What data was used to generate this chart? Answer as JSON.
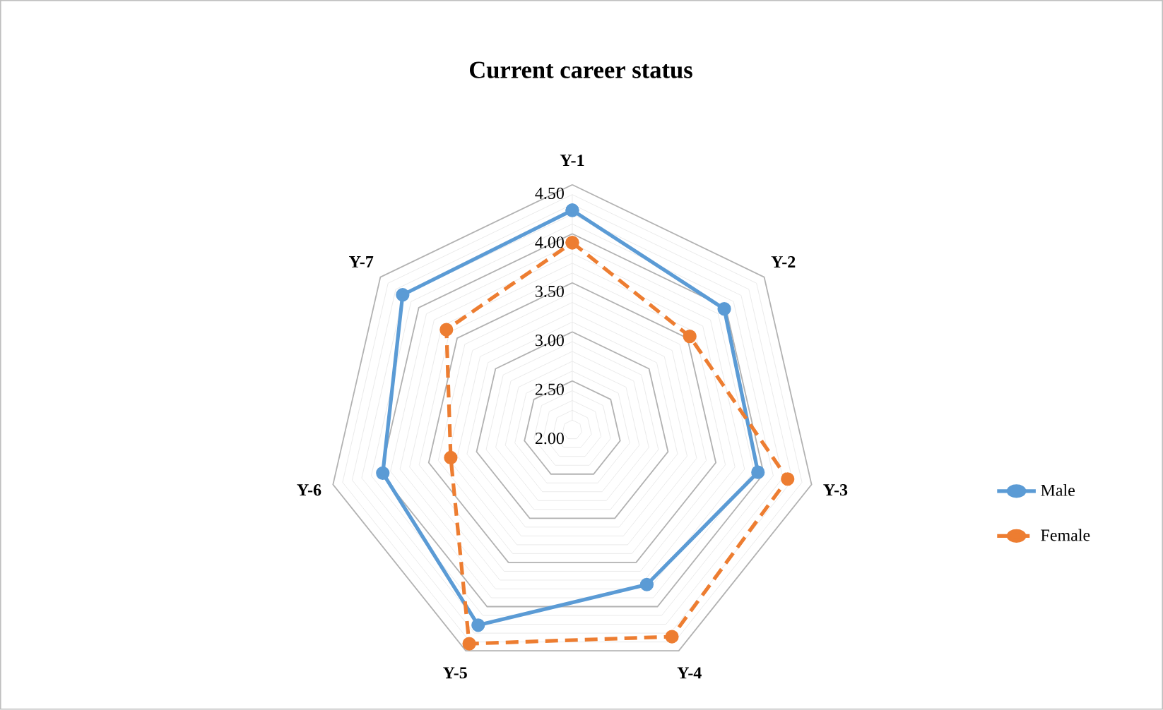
{
  "chart_data": {
    "type": "radar",
    "title": "Current career status",
    "categories": [
      "Y-1",
      "Y-2",
      "Y-3",
      "Y-4",
      "Y-5",
      "Y-6",
      "Y-7"
    ],
    "ylim": [
      2.0,
      4.5
    ],
    "yticks": [
      {
        "value": 2,
        "label": "2.00"
      },
      {
        "value": 2.5,
        "label": "2.50"
      },
      {
        "value": 3,
        "label": "3.00"
      },
      {
        "value": 3.5,
        "label": "3.50"
      },
      {
        "value": 4,
        "label": "4.00"
      },
      {
        "value": 4.5,
        "label": "4.50"
      }
    ],
    "grid": true,
    "legend": "right",
    "marker": "circle",
    "series": [
      {
        "name": "Male",
        "color": "#5b9bd5",
        "line_style": "solid",
        "values": [
          4.24,
          3.98,
          3.94,
          3.75,
          4.21,
          3.98,
          4.21
        ]
      },
      {
        "name": "Female",
        "color": "#ed7d31",
        "line_style": "dashed",
        "values": [
          3.91,
          3.53,
          4.25,
          4.34,
          4.42,
          3.27,
          3.64
        ]
      }
    ]
  }
}
